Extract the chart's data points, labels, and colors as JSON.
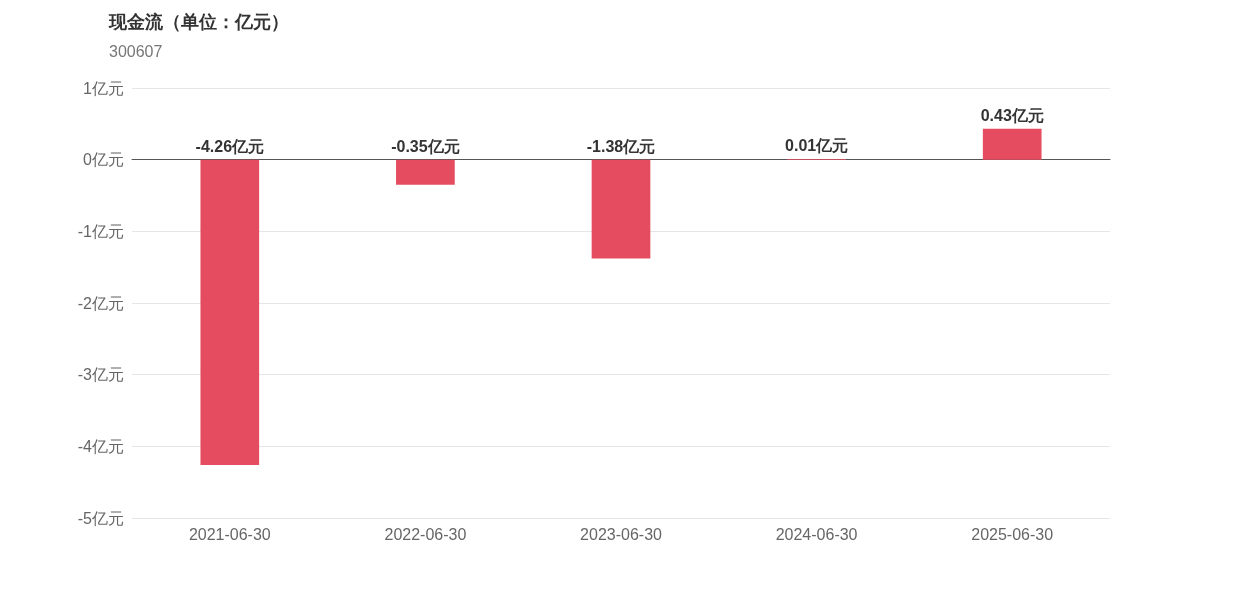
{
  "chart_data": {
    "type": "bar",
    "title": "现金流（单位：亿元）",
    "subtitle": "300607",
    "categories": [
      "2021-06-30",
      "2022-06-30",
      "2023-06-30",
      "2024-06-30",
      "2025-06-30"
    ],
    "values": [
      -4.26,
      -0.35,
      -1.38,
      0.01,
      0.43
    ],
    "value_labels": [
      "-4.26亿元",
      "-0.35亿元",
      "-1.38亿元",
      "0.01亿元",
      "0.43亿元"
    ],
    "color": "#e64c5f",
    "ylim": [
      -5,
      1
    ],
    "yticks": [
      {
        "value": -5,
        "label": "-5亿元"
      },
      {
        "value": -4,
        "label": "-4亿元"
      },
      {
        "value": -3,
        "label": "-3亿元"
      },
      {
        "value": -2,
        "label": "-2亿元"
      },
      {
        "value": -1,
        "label": "-1亿元"
      },
      {
        "value": 0,
        "label": "0亿元"
      },
      {
        "value": 1,
        "label": "1亿元"
      }
    ],
    "grid": "y"
  }
}
